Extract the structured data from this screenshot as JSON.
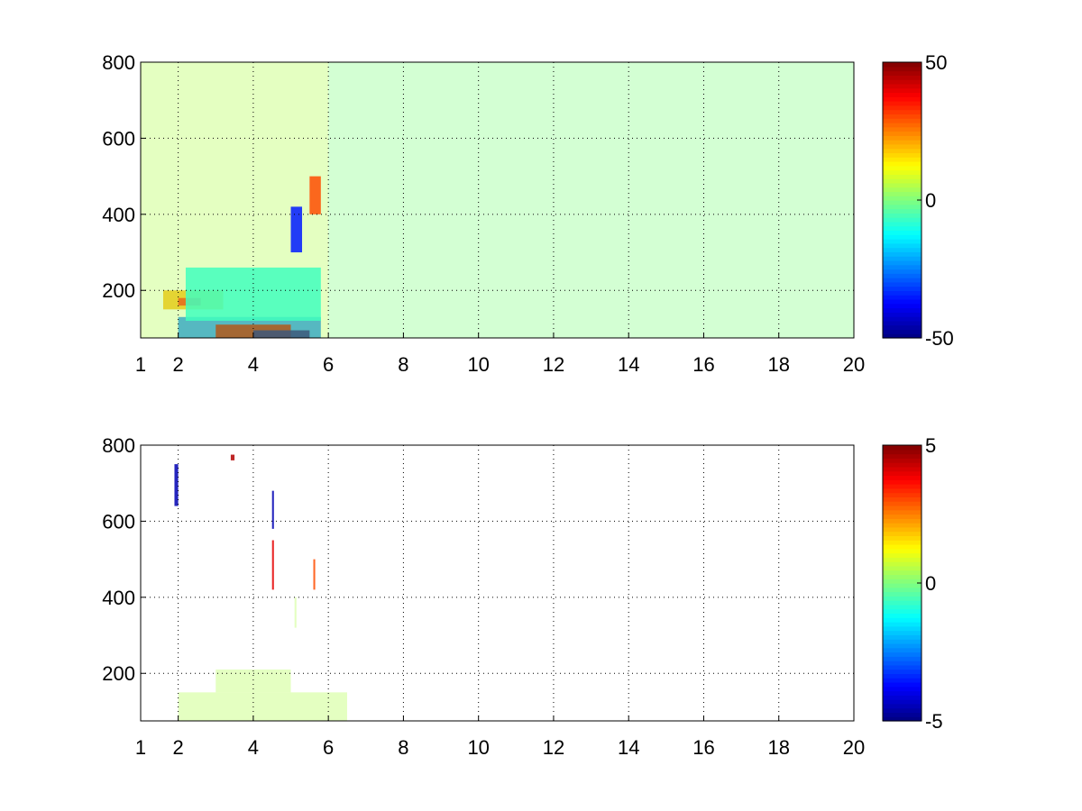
{
  "chart_data": [
    {
      "type": "heatmap",
      "title": "",
      "xlabel": "",
      "ylabel": "",
      "xlim": [
        1,
        20
      ],
      "ylim": [
        75,
        800
      ],
      "xticks": [
        "1",
        "2",
        "4",
        "6",
        "8",
        "10",
        "12",
        "14",
        "16",
        "18",
        "20"
      ],
      "yticks": [
        "200",
        "400",
        "600",
        "800"
      ],
      "grid": true,
      "colormap": "jet",
      "clim": [
        -50,
        50
      ],
      "colorbar_ticks": [
        "50",
        "0",
        "-50"
      ],
      "regions": [
        {
          "x": [
            2.0,
            5.8
          ],
          "y": [
            75,
            130
          ],
          "value": -25
        },
        {
          "x": [
            3.0,
            5.0
          ],
          "y": [
            75,
            110
          ],
          "value": 45
        },
        {
          "x": [
            4.0,
            5.5
          ],
          "y": [
            75,
            95
          ],
          "value": -48
        },
        {
          "x": [
            1.6,
            3.2
          ],
          "y": [
            150,
            200
          ],
          "value": 20
        },
        {
          "x": [
            2.0,
            2.6
          ],
          "y": [
            160,
            180
          ],
          "value": 35
        },
        {
          "x": [
            2.2,
            5.8
          ],
          "y": [
            120,
            260
          ],
          "value": -12
        },
        {
          "x": [
            1.0,
            6.0
          ],
          "y": [
            75,
            800
          ],
          "value": 5
        },
        {
          "x": [
            6.0,
            20.0
          ],
          "y": [
            75,
            800
          ],
          "value": 0
        },
        {
          "x": [
            5.5,
            5.8
          ],
          "y": [
            400,
            500
          ],
          "value": 30
        },
        {
          "x": [
            5.0,
            5.3
          ],
          "y": [
            300,
            420
          ],
          "value": -35
        }
      ]
    },
    {
      "type": "heatmap",
      "title": "",
      "xlabel": "",
      "ylabel": "",
      "xlim": [
        1,
        20
      ],
      "ylim": [
        75,
        800
      ],
      "xticks": [
        "1",
        "2",
        "4",
        "6",
        "8",
        "10",
        "12",
        "14",
        "16",
        "18",
        "20"
      ],
      "yticks": [
        "200",
        "400",
        "600",
        "800"
      ],
      "grid": true,
      "colormap": "jet",
      "clim": [
        -5,
        5
      ],
      "colorbar_ticks": [
        "5",
        "0",
        "-5"
      ],
      "regions": [
        {
          "x": [
            2.0,
            6.5
          ],
          "y": [
            75,
            150
          ],
          "value": 0.5
        },
        {
          "x": [
            3.0,
            5.0
          ],
          "y": [
            150,
            210
          ],
          "value": 0.5
        },
        {
          "x": [
            1.9,
            2.0
          ],
          "y": [
            640,
            750
          ],
          "value": -4.5
        },
        {
          "x": [
            4.5,
            4.55
          ],
          "y": [
            580,
            680
          ],
          "value": -4.5
        },
        {
          "x": [
            4.5,
            4.55
          ],
          "y": [
            420,
            550
          ],
          "value": 4
        },
        {
          "x": [
            5.6,
            5.65
          ],
          "y": [
            420,
            500
          ],
          "value": 3
        },
        {
          "x": [
            3.4,
            3.5
          ],
          "y": [
            760,
            775
          ],
          "value": 4.5
        },
        {
          "x": [
            5.1,
            5.15
          ],
          "y": [
            320,
            400
          ],
          "value": 0.5
        }
      ]
    }
  ]
}
